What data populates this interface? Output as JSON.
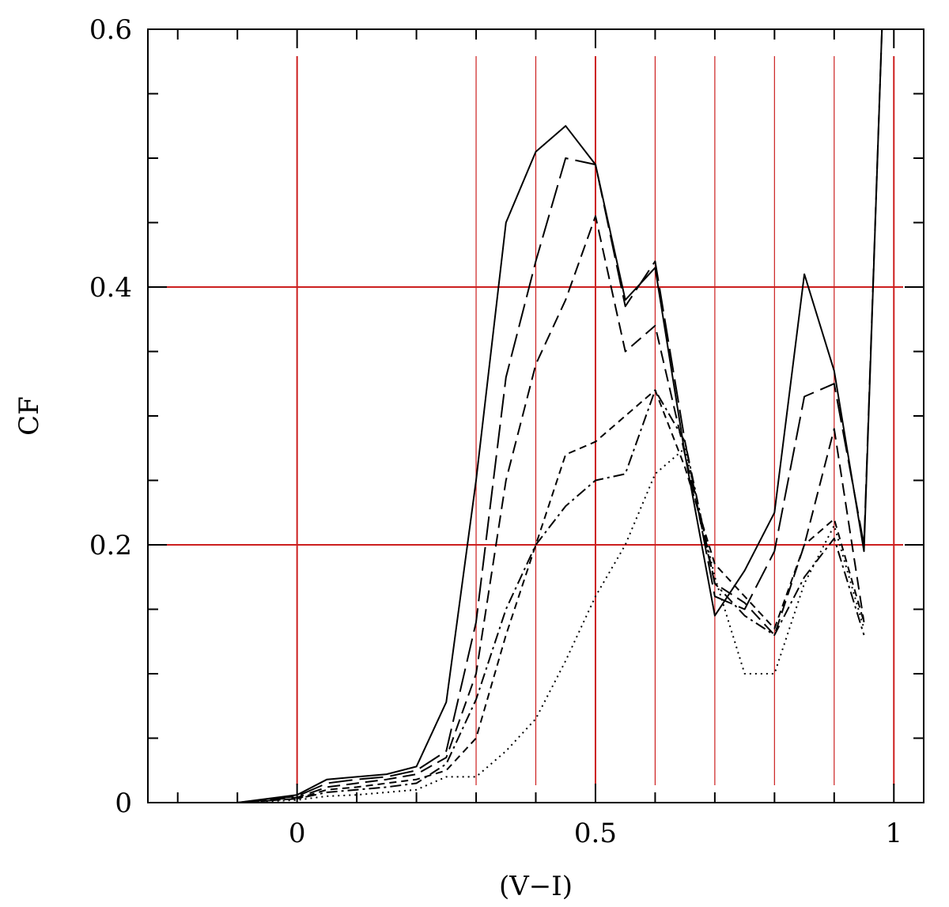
{
  "chart_data": {
    "type": "line",
    "title": "",
    "xlabel": "(V−I)",
    "ylabel": "CF",
    "xlim": [
      -0.25,
      1.05
    ],
    "ylim": [
      0,
      0.6
    ],
    "x_ticks_major": [
      0,
      0.5,
      1
    ],
    "x_tick_labels": [
      "0",
      "0.5",
      "1"
    ],
    "x_ticks_minor_step": 0.1,
    "y_ticks_major": [
      0,
      0.2,
      0.4,
      0.6
    ],
    "y_tick_labels": [
      "0",
      "0.2",
      "0.4",
      "0.6"
    ],
    "y_ticks_minor_step": 0.05,
    "reference_lines": {
      "color": "#cc1f1f",
      "vertical_x": [
        0,
        0.3,
        0.4,
        0.5,
        0.6,
        0.7,
        0.8,
        0.9,
        1.0
      ],
      "horizontal_y": [
        0.2,
        0.4
      ]
    },
    "series": [
      {
        "style": "solid",
        "x": [
          -0.2,
          -0.1,
          0.0,
          0.05,
          0.1,
          0.15,
          0.2,
          0.25,
          0.3,
          0.35,
          0.4,
          0.45,
          0.5,
          0.55,
          0.6,
          0.65,
          0.7,
          0.75,
          0.8,
          0.85,
          0.9,
          0.95,
          0.98
        ],
        "values": [
          0.0,
          0.0,
          0.006,
          0.018,
          0.02,
          0.022,
          0.028,
          0.078,
          0.25,
          0.45,
          0.505,
          0.525,
          0.495,
          0.39,
          0.415,
          0.27,
          0.145,
          0.18,
          0.225,
          0.41,
          0.335,
          0.195,
          0.6
        ]
      },
      {
        "style": "long-dash",
        "x": [
          -0.2,
          -0.1,
          0.0,
          0.05,
          0.1,
          0.15,
          0.2,
          0.25,
          0.3,
          0.35,
          0.4,
          0.45,
          0.5,
          0.55,
          0.6,
          0.65,
          0.7,
          0.75,
          0.8,
          0.85,
          0.9,
          0.95,
          0.98
        ],
        "values": [
          0.0,
          0.0,
          0.005,
          0.015,
          0.018,
          0.02,
          0.025,
          0.04,
          0.14,
          0.33,
          0.42,
          0.5,
          0.495,
          0.385,
          0.42,
          0.28,
          0.16,
          0.15,
          0.195,
          0.315,
          0.325,
          0.2,
          0.6
        ]
      },
      {
        "style": "medium-dash",
        "x": [
          -0.2,
          -0.1,
          0.0,
          0.05,
          0.1,
          0.15,
          0.2,
          0.25,
          0.3,
          0.35,
          0.4,
          0.45,
          0.5,
          0.55,
          0.6,
          0.65,
          0.7,
          0.75,
          0.8,
          0.85,
          0.9,
          0.95
        ],
        "values": [
          0.0,
          0.0,
          0.004,
          0.012,
          0.015,
          0.018,
          0.022,
          0.035,
          0.1,
          0.25,
          0.34,
          0.39,
          0.455,
          0.35,
          0.37,
          0.27,
          0.17,
          0.155,
          0.13,
          0.2,
          0.29,
          0.14
        ]
      },
      {
        "style": "short-dash",
        "x": [
          -0.2,
          -0.1,
          0.0,
          0.05,
          0.1,
          0.15,
          0.2,
          0.25,
          0.3,
          0.35,
          0.4,
          0.45,
          0.5,
          0.55,
          0.6,
          0.65,
          0.7,
          0.75,
          0.8,
          0.85,
          0.9,
          0.95
        ],
        "values": [
          0.0,
          0.0,
          0.003,
          0.01,
          0.012,
          0.015,
          0.018,
          0.025,
          0.05,
          0.13,
          0.2,
          0.27,
          0.28,
          0.3,
          0.32,
          0.26,
          0.185,
          0.16,
          0.135,
          0.2,
          0.22,
          0.14
        ]
      },
      {
        "style": "dash-dot",
        "x": [
          -0.2,
          -0.1,
          0.0,
          0.05,
          0.1,
          0.15,
          0.2,
          0.25,
          0.3,
          0.35,
          0.4,
          0.45,
          0.5,
          0.55,
          0.6,
          0.65,
          0.7,
          0.75,
          0.8,
          0.85,
          0.9,
          0.95
        ],
        "values": [
          0.0,
          0.0,
          0.003,
          0.008,
          0.01,
          0.012,
          0.015,
          0.03,
          0.08,
          0.15,
          0.2,
          0.23,
          0.25,
          0.255,
          0.32,
          0.28,
          0.17,
          0.145,
          0.13,
          0.175,
          0.205,
          0.13
        ]
      },
      {
        "style": "dotted",
        "x": [
          -0.2,
          -0.1,
          0.0,
          0.05,
          0.1,
          0.15,
          0.2,
          0.25,
          0.3,
          0.35,
          0.4,
          0.45,
          0.5,
          0.55,
          0.6,
          0.65,
          0.7,
          0.75,
          0.8,
          0.85,
          0.9,
          0.95
        ],
        "values": [
          0.0,
          0.0,
          0.002,
          0.005,
          0.006,
          0.008,
          0.01,
          0.02,
          0.02,
          0.04,
          0.065,
          0.11,
          0.16,
          0.2,
          0.255,
          0.275,
          0.175,
          0.1,
          0.1,
          0.17,
          0.215,
          0.135
        ]
      }
    ]
  }
}
